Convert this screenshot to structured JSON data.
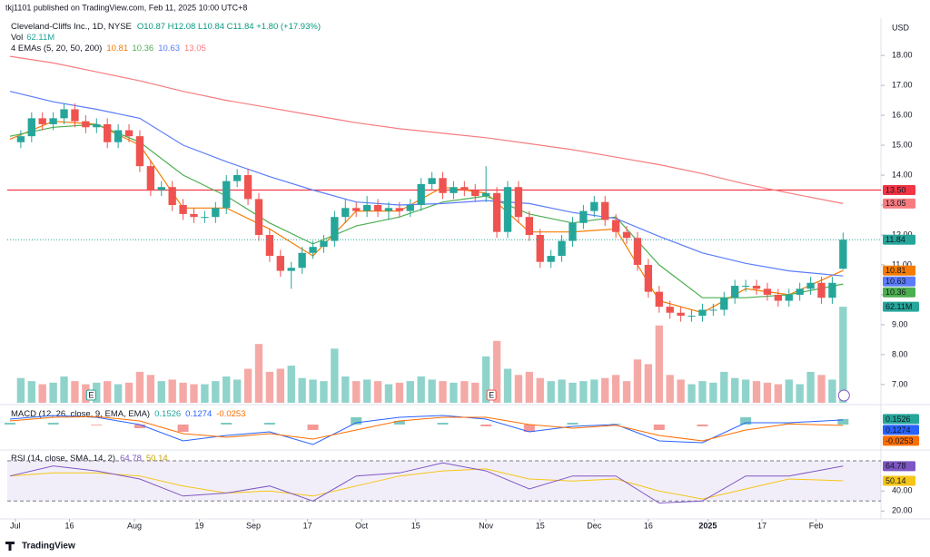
{
  "header": {
    "publisher": "tkj1101 published on TradingView.com, Feb 11, 2025 10:00 UTC+8",
    "symbol": "Cleveland-Cliffs Inc., 1D, NYSE",
    "ohlc": "O10.87 H12.08 L10.84 C11.84 +1.80 (+17.93%)",
    "currency": "USD",
    "footer": "TradingView"
  },
  "chart_data": [
    {
      "type": "candlestick",
      "up_color": "#26a69a",
      "down_color": "#ef5350",
      "x": [
        1,
        3,
        5,
        7,
        9,
        11,
        13,
        15,
        17,
        19,
        21,
        23,
        25,
        27,
        29,
        31,
        33,
        35,
        37,
        39,
        41,
        43,
        45,
        47,
        49,
        51,
        53,
        55,
        57,
        59,
        61,
        63,
        65,
        67,
        69,
        71,
        73,
        75,
        77,
        79,
        81,
        83,
        85,
        87,
        89,
        91,
        93,
        95,
        97,
        99,
        101,
        103,
        105,
        107,
        109,
        111,
        113,
        115,
        117,
        119,
        121,
        123,
        125,
        127,
        129,
        131,
        133,
        135,
        137,
        139,
        141,
        143,
        145,
        147,
        149,
        151,
        153
      ],
      "open": [
        15.1,
        15.3,
        15.9,
        15.7,
        15.9,
        16.2,
        15.8,
        15.6,
        15.7,
        15.1,
        15.5,
        15.3,
        14.3,
        13.5,
        13.6,
        13.0,
        12.7,
        12.6,
        12.6,
        12.9,
        13.8,
        14.0,
        13.2,
        12.0,
        11.3,
        10.8,
        10.9,
        11.4,
        11.6,
        11.8,
        12.6,
        12.9,
        12.8,
        13.0,
        12.8,
        12.9,
        12.8,
        13.0,
        13.7,
        13.9,
        13.4,
        13.6,
        13.5,
        13.3,
        13.4,
        12.1,
        13.6,
        12.6,
        12.0,
        11.1,
        11.3,
        11.8,
        12.4,
        12.8,
        13.1,
        12.5,
        12.1,
        11.9,
        11.0,
        10.1,
        9.6,
        9.4,
        9.3,
        9.3,
        9.5,
        9.5,
        9.9,
        10.3,
        10.3,
        10.2,
        10.0,
        9.8,
        10.0,
        10.2,
        10.4,
        9.9,
        10.87
      ],
      "high": [
        15.5,
        16.1,
        16.1,
        16.1,
        16.4,
        16.4,
        16.0,
        15.9,
        15.9,
        15.7,
        15.7,
        15.5,
        14.5,
        13.8,
        13.8,
        13.2,
        12.9,
        12.8,
        13.1,
        14.0,
        14.2,
        14.2,
        13.4,
        12.2,
        11.5,
        11.1,
        11.6,
        11.8,
        12.0,
        12.8,
        13.2,
        13.1,
        13.3,
        13.2,
        13.1,
        13.1,
        13.2,
        13.9,
        14.1,
        14.1,
        13.8,
        13.8,
        13.7,
        14.3,
        13.6,
        13.8,
        13.8,
        12.8,
        12.2,
        11.5,
        12.0,
        12.6,
        13.0,
        13.3,
        13.3,
        12.7,
        12.3,
        12.1,
        11.2,
        10.3,
        9.8,
        9.6,
        9.5,
        9.7,
        9.7,
        10.1,
        10.5,
        10.5,
        10.5,
        10.4,
        10.2,
        10.2,
        10.4,
        10.6,
        10.6,
        10.6,
        12.08
      ],
      "low": [
        14.9,
        15.1,
        15.5,
        15.5,
        15.7,
        15.6,
        15.4,
        15.4,
        14.9,
        14.9,
        15.1,
        14.1,
        13.3,
        13.3,
        12.8,
        12.5,
        12.4,
        12.4,
        12.4,
        12.7,
        13.6,
        13.0,
        11.8,
        11.1,
        10.6,
        10.2,
        10.7,
        11.2,
        11.4,
        11.6,
        12.4,
        12.6,
        12.6,
        12.6,
        12.5,
        12.6,
        12.6,
        12.8,
        13.5,
        13.2,
        13.2,
        13.3,
        13.1,
        13.1,
        11.9,
        11.9,
        12.4,
        11.8,
        10.9,
        10.9,
        11.1,
        11.6,
        12.2,
        12.6,
        12.3,
        11.9,
        11.7,
        10.8,
        9.9,
        9.4,
        9.2,
        9.1,
        9.1,
        9.1,
        9.3,
        9.3,
        9.7,
        10.1,
        10.0,
        9.8,
        9.6,
        9.6,
        9.8,
        10.0,
        9.7,
        9.7,
        10.84
      ],
      "close": [
        15.3,
        15.9,
        15.7,
        15.9,
        16.2,
        15.8,
        15.6,
        15.7,
        15.1,
        15.5,
        15.3,
        14.3,
        13.5,
        13.6,
        13.0,
        12.7,
        12.6,
        12.6,
        12.9,
        13.8,
        14.0,
        13.2,
        12.0,
        11.3,
        10.8,
        10.9,
        11.4,
        11.6,
        11.8,
        12.6,
        12.9,
        12.8,
        13.0,
        12.8,
        12.9,
        12.8,
        13.0,
        13.7,
        13.9,
        13.4,
        13.6,
        13.5,
        13.3,
        13.4,
        12.1,
        13.6,
        12.6,
        12.0,
        11.1,
        11.3,
        11.8,
        12.4,
        12.8,
        13.1,
        12.5,
        12.1,
        11.9,
        11.0,
        10.1,
        9.6,
        9.4,
        9.3,
        9.3,
        9.5,
        9.5,
        9.9,
        10.3,
        10.3,
        10.2,
        10.0,
        9.8,
        10.0,
        10.2,
        10.4,
        9.9,
        10.4,
        11.84
      ],
      "xlim": [
        -1.5,
        160
      ],
      "xticks": [
        {
          "value": 0,
          "label": "Jul"
        },
        {
          "value": 10,
          "label": "16"
        },
        {
          "value": 22,
          "label": "Aug"
        },
        {
          "value": 34,
          "label": "19"
        },
        {
          "value": 44,
          "label": "Sep"
        },
        {
          "value": 54,
          "label": "17"
        },
        {
          "value": 64,
          "label": "Oct"
        },
        {
          "value": 74,
          "label": "15"
        },
        {
          "value": 87,
          "label": "Nov"
        },
        {
          "value": 97,
          "label": "15"
        },
        {
          "value": 107,
          "label": "Dec"
        },
        {
          "value": 117,
          "label": "16"
        },
        {
          "value": 128,
          "label": "2025"
        },
        {
          "value": 138,
          "label": "17"
        },
        {
          "value": 148,
          "label": "Feb"
        }
      ],
      "ylim": [
        6.39,
        18.64
      ],
      "yticks": [
        {
          "value": 7,
          "label": "7.00"
        },
        {
          "value": 8,
          "label": "8.00"
        },
        {
          "value": 9,
          "label": "9.00"
        },
        {
          "value": 10,
          "label": "10.00"
        },
        {
          "value": 11,
          "label": "11.00"
        },
        {
          "value": 12,
          "label": "12.00"
        },
        {
          "value": 13,
          "label": "13.00"
        },
        {
          "value": 14,
          "label": "14.00"
        },
        {
          "value": 15,
          "label": "15.00"
        },
        {
          "value": 16,
          "label": "16.00"
        },
        {
          "value": 17,
          "label": "17.00"
        },
        {
          "value": 18,
          "label": "18.00"
        }
      ],
      "volume": {
        "title": "Vol",
        "label": "62.11M",
        "ylim": [
          0,
          237
        ],
        "up_color": "#8fd3cb",
        "down_color": "#f5a9a6",
        "values": [
          16,
          14,
          12,
          13,
          17,
          14,
          12,
          13,
          14,
          12,
          13,
          20,
          18,
          14,
          15,
          13,
          12,
          12,
          14,
          17,
          15,
          22,
          38,
          20,
          22,
          24,
          16,
          15,
          14,
          35,
          17,
          14,
          15,
          14,
          12,
          13,
          14,
          17,
          15,
          14,
          13,
          14,
          13,
          30,
          40,
          22,
          18,
          20,
          16,
          14,
          15,
          13,
          14,
          15,
          16,
          18,
          14,
          28,
          25,
          50,
          18,
          15,
          12,
          14,
          13,
          20,
          16,
          15,
          14,
          13,
          12,
          15,
          12,
          20,
          18,
          15,
          62.11
        ]
      },
      "ema": {
        "title": "4 EMAs (5, 20, 50, 200)",
        "x": [
          -1,
          7,
          15,
          23,
          31,
          39,
          47,
          55,
          63,
          71,
          79,
          87,
          95,
          103,
          111,
          119,
          127,
          135,
          143,
          153
        ],
        "series": [
          {
            "color": "#f57c00",
            "values": [
              15.2,
              15.8,
              15.7,
              15.0,
              12.9,
              12.9,
              12.2,
              11.3,
              12.8,
              12.8,
              13.6,
              13.4,
              12.1,
              12.1,
              12.2,
              9.8,
              9.4,
              10.2,
              10.0,
              10.81
            ]
          },
          {
            "color": "#4caf50",
            "values": [
              15.3,
              15.6,
              15.7,
              15.1,
              14.0,
              13.3,
              12.4,
              11.7,
              12.3,
              12.6,
              13.1,
              13.3,
              12.7,
              12.4,
              12.6,
              11.0,
              9.9,
              9.9,
              10.0,
              10.36
            ]
          },
          {
            "color": "#5b7cfa",
            "values": [
              16.8,
              16.45,
              16.2,
              15.9,
              15.0,
              14.45,
              13.95,
              13.5,
              13.1,
              13.0,
              13.05,
              13.15,
              13.05,
              12.75,
              12.55,
              11.95,
              11.4,
              11.05,
              10.8,
              10.63
            ]
          },
          {
            "color": "#f77c80",
            "values": [
              17.97,
              17.75,
              17.45,
              17.15,
              16.8,
              16.5,
              16.25,
              16.0,
              15.75,
              15.55,
              15.4,
              15.25,
              15.05,
              14.85,
              14.6,
              14.35,
              14.05,
              13.7,
              13.4,
              13.05
            ]
          }
        ]
      },
      "levels": [
        {
          "value": 13.5,
          "label": "13.50",
          "color": "#f23645"
        }
      ],
      "markers": {
        "label": "E",
        "x": [
          14,
          88
        ]
      }
    },
    {
      "type": "macd",
      "title": "MACD (12, 26, close, 9, EMA, EMA)",
      "ylim": [
        -0.65,
        0.45
      ],
      "x": [
        -1,
        7,
        15,
        23,
        31,
        39,
        47,
        55,
        63,
        71,
        79,
        87,
        95,
        103,
        111,
        119,
        127,
        135,
        143,
        153
      ],
      "histogram": [
        0.05,
        0.05,
        -0.02,
        -0.1,
        -0.2,
        0.05,
        0.05,
        -0.15,
        0.2,
        0.1,
        0.05,
        -0.05,
        -0.2,
        0.05,
        0.02,
        -0.15,
        -0.05,
        0.2,
        0.03,
        0.1526
      ],
      "macd": [
        0.15,
        0.25,
        0.2,
        0.0,
        -0.45,
        -0.3,
        -0.2,
        -0.55,
        0.05,
        0.2,
        0.25,
        0.15,
        -0.2,
        -0.05,
        0.0,
        -0.45,
        -0.5,
        0.05,
        0.05,
        0.1274
      ],
      "signal": [
        0.1,
        0.2,
        0.22,
        0.1,
        -0.25,
        -0.35,
        -0.25,
        -0.4,
        -0.15,
        0.1,
        0.2,
        0.2,
        0.0,
        -0.1,
        -0.02,
        -0.3,
        -0.45,
        -0.15,
        0.02,
        -0.0253
      ],
      "colors": {
        "up": "#26a69a",
        "down": "#ef5350",
        "macd": "#2962ff",
        "signal": "#ff6d00"
      }
    },
    {
      "type": "rsi",
      "title": "RSI (14, close, SMA, 14, 2)",
      "ylim": [
        14,
        80
      ],
      "yticks": [
        {
          "value": 40,
          "label": "40.00"
        },
        {
          "value": 20,
          "label": "20.00"
        }
      ],
      "bands": [
        70,
        30
      ],
      "x": [
        -1,
        7,
        15,
        23,
        31,
        39,
        47,
        55,
        63,
        71,
        79,
        87,
        95,
        103,
        111,
        119,
        127,
        135,
        143,
        153
      ],
      "rsi": [
        55,
        65,
        60,
        52,
        35,
        38,
        45,
        30,
        55,
        58,
        68,
        60,
        42,
        55,
        55,
        28,
        30,
        55,
        55,
        64.78
      ],
      "sma": [
        55,
        58,
        58,
        55,
        45,
        38,
        40,
        35,
        45,
        55,
        60,
        62,
        52,
        50,
        52,
        40,
        32,
        42,
        52,
        50.14
      ],
      "colors": {
        "rsi": "#7e57c2",
        "sma": "#f5c518"
      }
    }
  ]
}
